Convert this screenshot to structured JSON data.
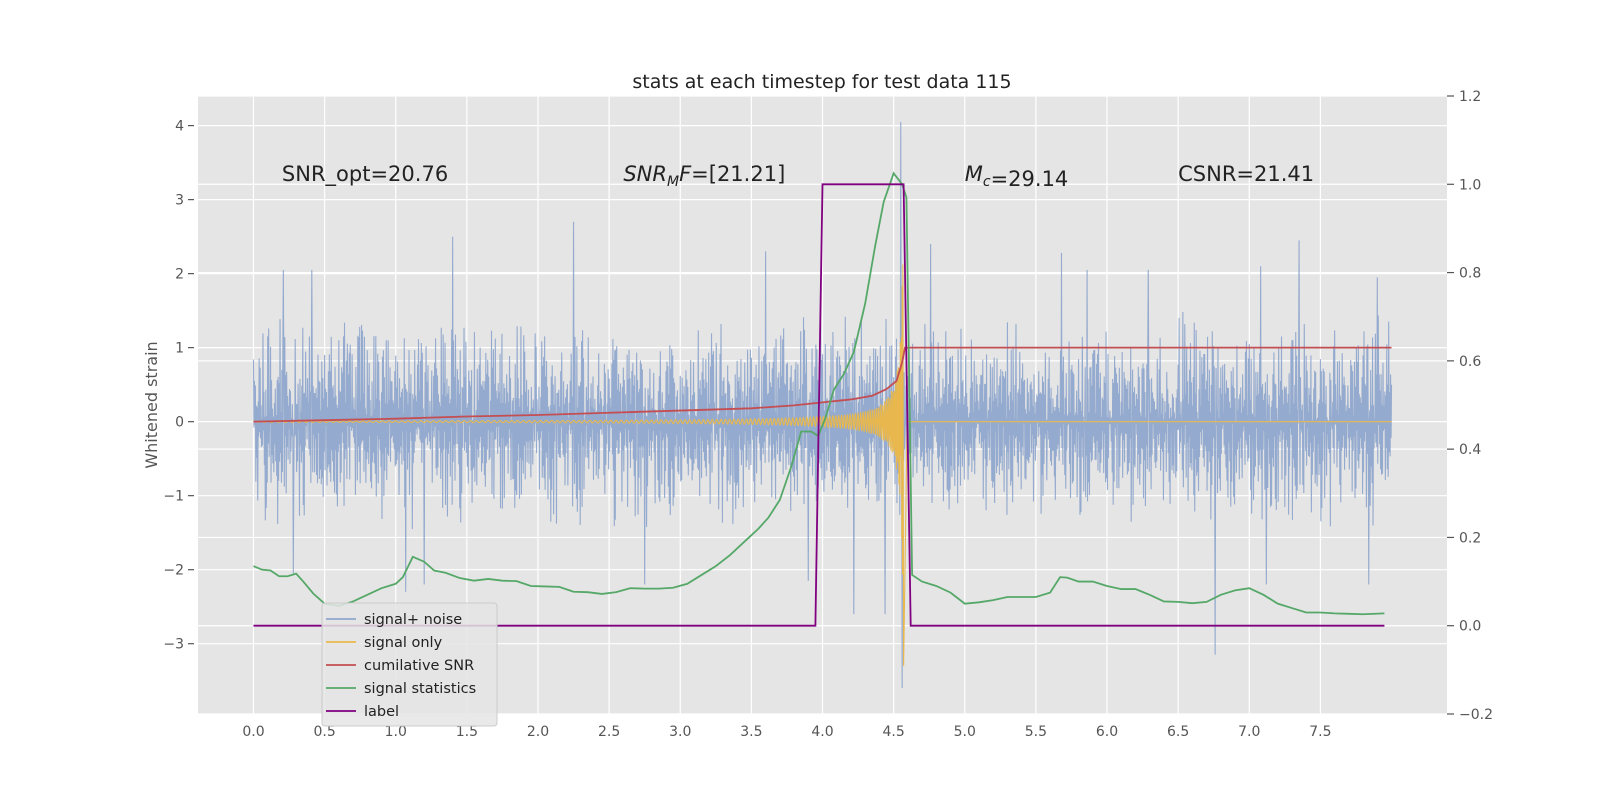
{
  "chart_data": {
    "type": "line",
    "title": "stats at each timestep for test data 115",
    "ylabel": "Whitened strain",
    "y2label": "",
    "xlim": [
      -0.39,
      8.39
    ],
    "ylim": [
      -3.95,
      4.4
    ],
    "y2lim": [
      -0.2,
      1.2
    ],
    "x_ticks": [
      0.0,
      0.5,
      1.0,
      1.5,
      2.0,
      2.5,
      3.0,
      3.5,
      4.0,
      4.5,
      5.0,
      5.5,
      6.0,
      6.5,
      7.0,
      7.5
    ],
    "x_tick_labels": [
      "0.0",
      "0.5",
      "1.0",
      "1.5",
      "2.0",
      "2.5",
      "3.0",
      "3.5",
      "4.0",
      "4.5",
      "5.0",
      "5.5",
      "6.0",
      "6.5",
      "7.0",
      "7.5"
    ],
    "y_ticks": [
      4,
      3,
      2,
      1,
      0,
      -1,
      -2,
      -3
    ],
    "y_tick_labels": [
      "4",
      "3",
      "2",
      "1",
      "0",
      "−1",
      "−2",
      "−3"
    ],
    "y2_ticks": [
      1.2,
      1.0,
      0.8,
      0.6,
      0.4,
      0.2,
      0.0,
      -0.2
    ],
    "y2_tick_labels": [
      "1.2",
      "1.0",
      "0.8",
      "0.6",
      "0.4",
      "0.2",
      "0.0",
      "−0.2"
    ],
    "grid": true,
    "legend_position": "lower-left",
    "annotations": [
      {
        "x": 0.2,
        "y": 3.25,
        "text": "SNR_opt=20.76",
        "italic_base": ""
      },
      {
        "x": 2.6,
        "y": 3.25,
        "text": "",
        "italic_base": "SNR",
        "sub": "M",
        "italic_after": "F",
        "rest": "=[21.21]"
      },
      {
        "x": 5.0,
        "y": 3.25,
        "text": "",
        "italic_base": "M",
        "sub": "c",
        "italic_after": "",
        "rest": "=29.14"
      },
      {
        "x": 6.5,
        "y": 3.25,
        "text": "CSNR=21.41",
        "italic_base": ""
      }
    ],
    "series": [
      {
        "name": "signal+ noise",
        "axis": "left",
        "kind": "noise",
        "color": "#8fa6cc",
        "x_range": [
          0.0,
          8.0
        ],
        "envelope": 1.5,
        "peaks_high": [
          [
            0.21,
            2.05
          ],
          [
            0.41,
            2.05
          ],
          [
            1.4,
            2.5
          ],
          [
            2.25,
            2.7
          ],
          [
            3.6,
            2.3
          ],
          [
            4.55,
            4.05
          ],
          [
            4.76,
            2.4
          ],
          [
            5.68,
            2.28
          ],
          [
            5.86,
            2.05
          ],
          [
            6.29,
            2.05
          ],
          [
            7.08,
            2.1
          ],
          [
            7.35,
            2.45
          ],
          [
            7.9,
            1.95
          ]
        ],
        "peaks_low": [
          [
            0.28,
            -2.05
          ],
          [
            1.07,
            -2.3
          ],
          [
            1.2,
            -2.2
          ],
          [
            2.75,
            -2.2
          ],
          [
            3.9,
            -2.15
          ],
          [
            4.22,
            -2.6
          ],
          [
            4.56,
            -3.6
          ],
          [
            4.44,
            -2.6
          ],
          [
            6.76,
            -3.15
          ],
          [
            7.12,
            -2.2
          ],
          [
            7.84,
            -2.2
          ]
        ]
      },
      {
        "name": "signal only",
        "axis": "left",
        "kind": "chirp",
        "color": "#e8b84e",
        "x_range": [
          0.0,
          8.0
        ],
        "merger_x": 4.57,
        "peak_amplitude": 3.3
      },
      {
        "name": "cumilative SNR",
        "axis": "left",
        "color": "#c44e52",
        "x": [
          0.0,
          0.5,
          1.0,
          1.5,
          2.0,
          2.5,
          3.0,
          3.5,
          3.8,
          4.0,
          4.2,
          4.35,
          4.45,
          4.52,
          4.56,
          4.58,
          4.6,
          5.0,
          6.0,
          7.0,
          8.0
        ],
        "y": [
          0.0,
          0.02,
          0.04,
          0.07,
          0.09,
          0.12,
          0.15,
          0.18,
          0.22,
          0.26,
          0.3,
          0.35,
          0.44,
          0.55,
          0.8,
          1.0,
          1.0,
          1.0,
          1.0,
          1.0,
          1.0
        ]
      },
      {
        "name": "signal statistics",
        "axis": "right",
        "color": "#55a868",
        "x": [
          0.0,
          0.06,
          0.12,
          0.18,
          0.24,
          0.3,
          0.35,
          0.42,
          0.5,
          0.6,
          0.7,
          0.8,
          0.9,
          1.0,
          1.05,
          1.12,
          1.2,
          1.27,
          1.35,
          1.45,
          1.55,
          1.65,
          1.75,
          1.85,
          1.95,
          2.05,
          2.15,
          2.25,
          2.35,
          2.45,
          2.55,
          2.65,
          2.75,
          2.85,
          2.95,
          3.05,
          3.15,
          3.25,
          3.35,
          3.45,
          3.55,
          3.62,
          3.7,
          3.78,
          3.85,
          3.92,
          3.97,
          4.02,
          4.08,
          4.15,
          4.22,
          4.3,
          4.37,
          4.43,
          4.5,
          4.56,
          4.59,
          4.63,
          4.7,
          4.8,
          4.9,
          5.0,
          5.1,
          5.2,
          5.3,
          5.4,
          5.5,
          5.6,
          5.67,
          5.72,
          5.8,
          5.9,
          6.0,
          6.1,
          6.2,
          6.3,
          6.4,
          6.5,
          6.6,
          6.7,
          6.8,
          6.9,
          7.0,
          7.1,
          7.2,
          7.3,
          7.4,
          7.5,
          7.6,
          7.7,
          7.8,
          7.95
        ],
        "y": [
          0.135,
          0.127,
          0.125,
          0.112,
          0.112,
          0.118,
          0.1,
          0.073,
          0.05,
          0.045,
          0.055,
          0.07,
          0.085,
          0.095,
          0.11,
          0.156,
          0.145,
          0.125,
          0.12,
          0.108,
          0.102,
          0.106,
          0.102,
          0.101,
          0.09,
          0.089,
          0.088,
          0.077,
          0.076,
          0.072,
          0.076,
          0.085,
          0.084,
          0.084,
          0.086,
          0.095,
          0.115,
          0.135,
          0.16,
          0.19,
          0.22,
          0.245,
          0.285,
          0.36,
          0.44,
          0.44,
          0.43,
          0.47,
          0.535,
          0.57,
          0.62,
          0.73,
          0.86,
          0.96,
          1.025,
          1.0,
          0.97,
          0.115,
          0.1,
          0.09,
          0.075,
          0.05,
          0.053,
          0.058,
          0.065,
          0.065,
          0.065,
          0.075,
          0.11,
          0.109,
          0.1,
          0.1,
          0.09,
          0.083,
          0.083,
          0.07,
          0.055,
          0.054,
          0.051,
          0.054,
          0.07,
          0.08,
          0.085,
          0.07,
          0.05,
          0.04,
          0.03,
          0.03,
          0.028,
          0.027,
          0.026,
          0.028
        ]
      },
      {
        "name": "label",
        "axis": "right",
        "color": "#800080",
        "x": [
          0.0,
          3.95,
          4.0,
          4.57,
          4.62,
          7.95
        ],
        "y": [
          0.0,
          0.0,
          1.0,
          1.0,
          0.0,
          0.0
        ]
      }
    ],
    "legend": [
      "signal+ noise",
      "signal only",
      "cumilative SNR",
      "signal statistics",
      "label"
    ]
  }
}
